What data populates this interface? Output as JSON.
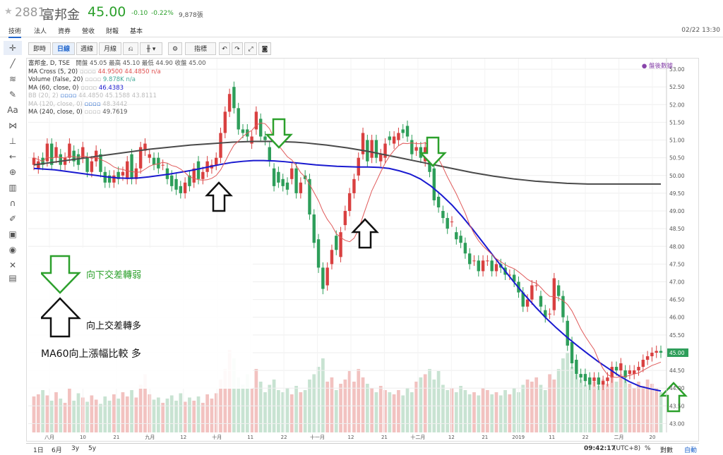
{
  "header": {
    "code": "2881",
    "name": "富邦金",
    "price": "45.00",
    "change": "-0.10",
    "change_pct": "-0.22%",
    "volume": "9,878張",
    "datetime": "02/22 13:30"
  },
  "tabs": [
    "技術",
    "法人",
    "資券",
    "營收",
    "財報",
    "基本"
  ],
  "toolbar": {
    "buttons": [
      "即時",
      "日線",
      "週線",
      "月線",
      "指標"
    ],
    "after_hours": "● 盤後數據"
  },
  "legend": {
    "line1": "富邦金, D, TSE",
    "ohlc_label": "開盤 45.05 最高 45.10 最低 44.90 收盤 45.00",
    "ma_cross": "MA Cross (5, 20)",
    "ma_cross_vals": "44.9500  44.4850  n/a",
    "volume": "Volume (false, 20)",
    "volume_vals": "9.878K  n/a",
    "ma60": "MA (60, close, 0)",
    "ma60_val": "46.4383",
    "bb": "BB (20, 2)",
    "bb_vals": "44.4850  45.1588  43.8111",
    "ma120": "MA (120, close, 0)",
    "ma120_val": "48.3442",
    "ma240": "MA (240, close, 0)",
    "ma240_val": "49.7619"
  },
  "annotations": {
    "down_label": "向下交差轉弱",
    "up_label": "向上交差轉多",
    "ma60_note": "MA60向上漲幅比較 多"
  },
  "bottom": {
    "ranges": [
      "1日",
      "6月",
      "3y",
      "5y"
    ],
    "time": "09:42:17",
    "tz": "(UTC+8)",
    "pct": "%",
    "log": "對數",
    "auto": "自動"
  },
  "chart_data": {
    "type": "candlestick",
    "ylim": [
      42.75,
      53.3
    ],
    "yticks": [
      "53.00",
      "52.50",
      "52.00",
      "51.50",
      "51.00",
      "50.50",
      "50.00",
      "49.50",
      "49.00",
      "48.50",
      "48.00",
      "47.50",
      "47.00",
      "46.50",
      "46.00",
      "45.50",
      "45.00",
      "44.50",
      "44.00",
      "43.50",
      "43.00"
    ],
    "last_price_label": "45.00",
    "xticks": [
      "八月",
      "10",
      "21",
      "九月",
      "12",
      "十月",
      "11",
      "22",
      "十一月",
      "12",
      "21",
      "十二月",
      "12",
      "21",
      "2019",
      "11",
      "22",
      "二月",
      "20"
    ],
    "candles": [
      [
        50.3,
        50.5
      ],
      [
        50.2,
        50.4
      ],
      [
        50.5,
        50.3
      ],
      [
        50.4,
        50.9
      ],
      [
        50.9,
        50.3
      ],
      [
        50.5,
        50.8
      ],
      [
        50.6,
        50.3
      ],
      [
        50.3,
        50.5
      ],
      [
        50.5,
        50.9
      ],
      [
        50.7,
        50.4
      ],
      [
        50.6,
        50.3
      ],
      [
        50.5,
        50.8
      ],
      [
        50.5,
        50.1
      ],
      [
        50.1,
        50.4
      ],
      [
        50.4,
        50.7
      ],
      [
        50.6,
        50.1
      ],
      [
        50.1,
        49.8
      ],
      [
        50.0,
        49.8
      ],
      [
        49.8,
        50.0
      ],
      [
        50.1,
        49.9
      ],
      [
        50.0,
        50.1
      ],
      [
        49.9,
        50.4
      ],
      [
        50.6,
        49.9
      ],
      [
        49.9,
        50.2
      ],
      [
        50.2,
        50.8
      ],
      [
        50.7,
        50.9
      ],
      [
        50.5,
        50.6
      ],
      [
        50.5,
        50.3
      ],
      [
        50.5,
        50.2
      ],
      [
        50.3,
        50.3
      ],
      [
        50.2,
        49.9
      ],
      [
        50.0,
        49.7
      ],
      [
        49.9,
        49.6
      ],
      [
        49.7,
        49.5
      ],
      [
        49.5,
        49.8
      ],
      [
        50.0,
        49.7
      ],
      [
        49.8,
        50.2
      ],
      [
        50.4,
        49.9
      ],
      [
        49.9,
        50.1
      ],
      [
        50.1,
        50.4
      ],
      [
        50.2,
        50.3
      ],
      [
        50.3,
        50.5
      ],
      [
        50.5,
        51.2
      ],
      [
        51.2,
        51.8
      ],
      [
        51.8,
        52.3
      ],
      [
        52.5,
        51.9
      ],
      [
        51.9,
        51.3
      ],
      [
        51.3,
        51.2
      ],
      [
        51.3,
        51.1
      ],
      [
        50.9,
        51.1
      ],
      [
        51.3,
        51.8
      ],
      [
        51.6,
        51.1
      ],
      [
        51.1,
        51.0
      ],
      [
        50.8,
        50.4
      ],
      [
        50.2,
        49.7
      ],
      [
        50.1,
        49.8
      ],
      [
        49.9,
        49.7
      ],
      [
        49.8,
        49.6
      ],
      [
        49.9,
        50.2
      ],
      [
        50.2,
        49.5
      ],
      [
        49.5,
        49.8
      ],
      [
        50.0,
        49.9
      ],
      [
        49.9,
        48.9
      ],
      [
        48.9,
        48.1
      ],
      [
        48.2,
        47.4
      ],
      [
        47.4,
        46.8
      ],
      [
        46.9,
        47.4
      ],
      [
        47.5,
        47.9
      ],
      [
        48.3,
        47.9
      ],
      [
        47.7,
        48.4
      ],
      [
        48.6,
        49.0
      ],
      [
        49.0,
        49.5
      ],
      [
        49.5,
        49.9
      ],
      [
        50.0,
        50.5
      ],
      [
        50.6,
        51.2
      ],
      [
        51.0,
        50.4
      ],
      [
        50.5,
        51.0
      ],
      [
        51.0,
        50.5
      ],
      [
        50.4,
        50.6
      ],
      [
        50.5,
        50.9
      ],
      [
        51.1,
        51.0
      ],
      [
        50.9,
        51.1
      ],
      [
        51.0,
        51.2
      ],
      [
        51.3,
        51.2
      ],
      [
        51.4,
        51.1
      ],
      [
        51.0,
        50.6
      ],
      [
        50.7,
        50.8
      ],
      [
        50.8,
        50.5
      ],
      [
        50.4,
        50.8
      ],
      [
        50.7,
        50.1
      ],
      [
        50.2,
        49.3
      ],
      [
        49.4,
        49.1
      ],
      [
        49.0,
        48.8
      ],
      [
        48.8,
        48.5
      ],
      [
        48.7,
        48.7
      ],
      [
        48.4,
        48.2
      ],
      [
        48.3,
        48.1
      ],
      [
        48.1,
        47.8
      ],
      [
        47.8,
        47.5
      ],
      [
        47.6,
        47.6
      ],
      [
        47.6,
        47.3
      ],
      [
        47.3,
        47.6
      ],
      [
        47.6,
        47.6
      ],
      [
        47.6,
        47.3
      ],
      [
        47.3,
        47.5
      ],
      [
        47.5,
        47.4
      ],
      [
        47.4,
        47.2
      ],
      [
        47.2,
        47.2
      ],
      [
        47.2,
        47.0
      ],
      [
        47.0,
        46.7
      ],
      [
        46.7,
        46.3
      ],
      [
        46.3,
        46.5
      ],
      [
        46.5,
        46.9
      ],
      [
        46.9,
        46.9
      ],
      [
        46.6,
        46.3
      ],
      [
        46.2,
        46.0
      ],
      [
        46.1,
        46.1
      ],
      [
        46.2,
        47.1
      ],
      [
        46.9,
        46.6
      ],
      [
        46.6,
        46.0
      ],
      [
        45.9,
        45.2
      ],
      [
        45.3,
        44.7
      ],
      [
        44.8,
        44.4
      ],
      [
        44.4,
        44.3
      ],
      [
        44.4,
        44.2
      ],
      [
        44.3,
        44.1
      ],
      [
        44.2,
        44.3
      ],
      [
        44.3,
        44.1
      ],
      [
        44.1,
        44.2
      ],
      [
        44.2,
        44.3
      ],
      [
        44.3,
        44.6
      ],
      [
        44.6,
        44.5
      ],
      [
        44.5,
        44.7
      ],
      [
        44.5,
        44.3
      ],
      [
        44.4,
        44.5
      ],
      [
        44.4,
        44.5
      ],
      [
        44.5,
        44.6
      ],
      [
        44.6,
        44.8
      ],
      [
        44.8,
        44.9
      ],
      [
        44.9,
        45.0
      ],
      [
        45.0,
        45.05
      ],
      [
        45.05,
        45.0
      ]
    ],
    "ma60": [
      50.2,
      50.18,
      50.16,
      50.12,
      50.08,
      50.04,
      50.0,
      49.96,
      49.93,
      49.92,
      49.93,
      49.96,
      50.0,
      50.04,
      50.09,
      50.14,
      50.2,
      50.26,
      50.32,
      50.37,
      50.4,
      50.42,
      50.42,
      50.41,
      50.39,
      50.36,
      50.33,
      50.3,
      50.28,
      50.26,
      50.25,
      50.24,
      50.24,
      50.23,
      50.2,
      50.13,
      50.04,
      49.9,
      49.7,
      49.45,
      49.17,
      48.84,
      48.48,
      48.1,
      47.72,
      47.34,
      46.97,
      46.62,
      46.29,
      45.98,
      45.7,
      45.44,
      45.2,
      44.97,
      44.75,
      44.55,
      44.35,
      44.18,
      44.05,
      43.98,
      43.92
    ],
    "ma240": [
      50.3,
      50.34,
      50.38,
      50.42,
      50.46,
      50.5,
      50.54,
      50.58,
      50.62,
      50.66,
      50.7,
      50.74,
      50.77,
      50.8,
      50.83,
      50.86,
      50.88,
      50.9,
      50.92,
      50.94,
      50.95,
      50.96,
      50.96,
      50.96,
      50.95,
      50.94,
      50.92,
      50.89,
      50.86,
      50.82,
      50.78,
      50.73,
      50.68,
      50.62,
      50.56,
      50.5,
      50.44,
      50.38,
      50.32,
      50.26,
      50.2,
      50.14,
      50.08,
      50.03,
      49.98,
      49.94,
      49.9,
      49.87,
      49.84,
      49.82,
      49.8,
      49.78,
      49.77,
      49.76,
      49.76,
      49.76,
      49.76,
      49.76,
      49.76,
      49.76,
      49.76
    ],
    "volume": [
      0.34,
      0.36,
      0.4,
      0.35,
      0.3,
      0.38,
      0.32,
      0.28,
      0.42,
      0.3,
      0.37,
      0.33,
      0.29,
      0.35,
      0.31,
      0.27,
      0.34,
      0.3,
      0.36,
      0.32,
      0.38,
      0.34,
      0.4,
      0.33,
      0.45,
      0.55,
      0.36,
      0.31,
      0.33,
      0.28,
      0.32,
      0.35,
      0.3,
      0.37,
      0.29,
      0.33,
      0.3,
      0.34,
      0.28,
      0.36,
      0.32,
      0.37,
      0.5,
      0.6,
      0.78,
      0.7,
      0.52,
      0.45,
      0.55,
      0.42,
      0.6,
      0.48,
      0.38,
      0.45,
      0.5,
      0.4,
      0.38,
      0.42,
      0.36,
      0.44,
      0.38,
      0.4,
      0.5,
      0.55,
      0.62,
      0.7,
      0.48,
      0.52,
      0.4,
      0.46,
      0.5,
      0.55,
      0.58,
      0.48,
      0.6,
      0.52,
      0.46,
      0.42,
      0.38,
      0.44,
      0.4,
      0.38,
      0.36,
      0.4,
      0.35,
      0.42,
      0.38,
      0.48,
      0.52,
      0.55,
      0.6,
      0.5,
      0.58,
      0.45,
      0.4,
      0.42,
      0.38,
      0.44,
      0.4,
      0.36,
      0.38,
      0.35,
      0.42,
      0.4,
      0.36,
      0.38,
      0.35,
      0.4,
      0.36,
      0.42,
      0.38,
      0.45,
      0.5,
      0.48,
      0.52,
      0.45,
      0.4,
      0.55,
      0.5,
      0.6,
      0.7,
      0.75,
      0.62,
      0.55,
      0.5,
      0.45,
      0.52,
      0.48,
      0.44,
      0.5,
      0.46,
      0.52,
      0.48,
      0.55,
      0.5,
      0.46,
      0.42,
      0.48,
      0.44,
      0.5,
      0.46,
      0.42,
      0.38
    ]
  }
}
